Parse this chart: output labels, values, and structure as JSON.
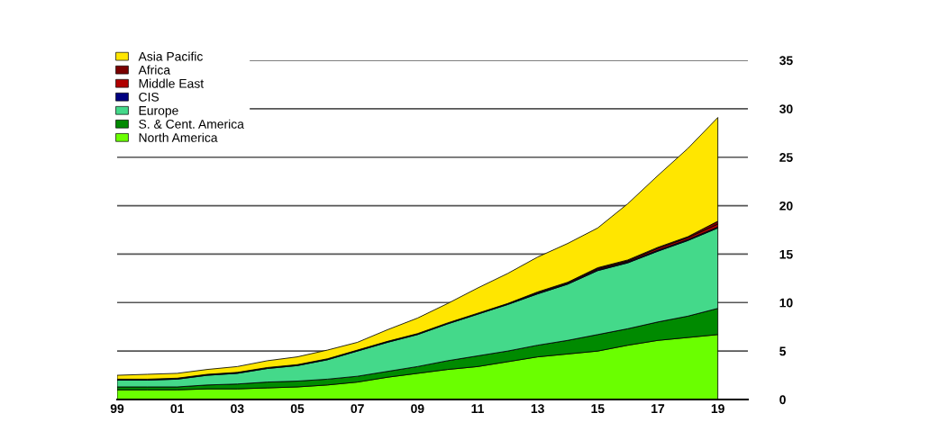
{
  "chart_data": {
    "type": "area",
    "stacked": true,
    "x": [
      1999,
      2000,
      2001,
      2002,
      2003,
      2004,
      2005,
      2006,
      2007,
      2008,
      2009,
      2010,
      2011,
      2012,
      2013,
      2014,
      2015,
      2016,
      2017,
      2018,
      2019
    ],
    "series": [
      {
        "name": "North America",
        "color": "#6aff00",
        "values": [
          1.0,
          1.0,
          1.0,
          1.1,
          1.1,
          1.2,
          1.3,
          1.5,
          1.8,
          2.3,
          2.7,
          3.1,
          3.4,
          3.9,
          4.4,
          4.7,
          5.0,
          5.6,
          6.1,
          6.4,
          6.7
        ]
      },
      {
        "name": "S. & Cent. America",
        "color": "#008a00",
        "values": [
          0.3,
          0.3,
          0.3,
          0.4,
          0.5,
          0.6,
          0.6,
          0.6,
          0.6,
          0.6,
          0.7,
          0.9,
          1.1,
          1.1,
          1.2,
          1.4,
          1.7,
          1.7,
          1.9,
          2.2,
          2.7
        ]
      },
      {
        "name": "Europe",
        "color": "#44d98a",
        "values": [
          0.7,
          0.7,
          0.8,
          1.0,
          1.1,
          1.4,
          1.6,
          2.0,
          2.6,
          3.0,
          3.3,
          3.8,
          4.3,
          4.8,
          5.3,
          5.8,
          6.6,
          6.8,
          7.3,
          7.8,
          8.3
        ]
      },
      {
        "name": "CIS",
        "color": "#000080",
        "values": [
          0.1,
          0.1,
          0.1,
          0.1,
          0.1,
          0.1,
          0.1,
          0.1,
          0.1,
          0.1,
          0.1,
          0.1,
          0.1,
          0.1,
          0.1,
          0.1,
          0.1,
          0.1,
          0.1,
          0.1,
          0.1
        ]
      },
      {
        "name": "Middle East",
        "color": "#b00000",
        "values": [
          0,
          0,
          0,
          0,
          0,
          0,
          0,
          0,
          0,
          0,
          0,
          0,
          0,
          0,
          0.1,
          0.1,
          0.1,
          0.1,
          0.2,
          0.2,
          0.3
        ]
      },
      {
        "name": "Africa",
        "color": "#7a0000",
        "values": [
          0,
          0,
          0,
          0,
          0,
          0,
          0,
          0,
          0,
          0,
          0,
          0,
          0,
          0,
          0,
          0,
          0.1,
          0.1,
          0.1,
          0.1,
          0.3
        ]
      },
      {
        "name": "Asia Pacific",
        "color": "#ffe600",
        "values": [
          0.4,
          0.5,
          0.5,
          0.5,
          0.6,
          0.7,
          0.8,
          0.9,
          0.8,
          1.2,
          1.6,
          2.0,
          2.6,
          3.1,
          3.6,
          4.0,
          4.1,
          5.8,
          7.4,
          9.1,
          10.7
        ]
      }
    ],
    "xlim": [
      1999,
      2020
    ],
    "ylim": [
      0,
      35
    ],
    "xticks": [
      {
        "value": 1999,
        "label": "99"
      },
      {
        "value": 2001,
        "label": "01"
      },
      {
        "value": 2003,
        "label": "03"
      },
      {
        "value": 2005,
        "label": "05"
      },
      {
        "value": 2007,
        "label": "07"
      },
      {
        "value": 2009,
        "label": "09"
      },
      {
        "value": 2011,
        "label": "11"
      },
      {
        "value": 2013,
        "label": "13"
      },
      {
        "value": 2015,
        "label": "15"
      },
      {
        "value": 2017,
        "label": "17"
      },
      {
        "value": 2019,
        "label": "19"
      }
    ],
    "yticks": [
      0,
      5,
      10,
      15,
      20,
      25,
      30,
      35
    ],
    "grid": "y",
    "legend": "top left"
  }
}
